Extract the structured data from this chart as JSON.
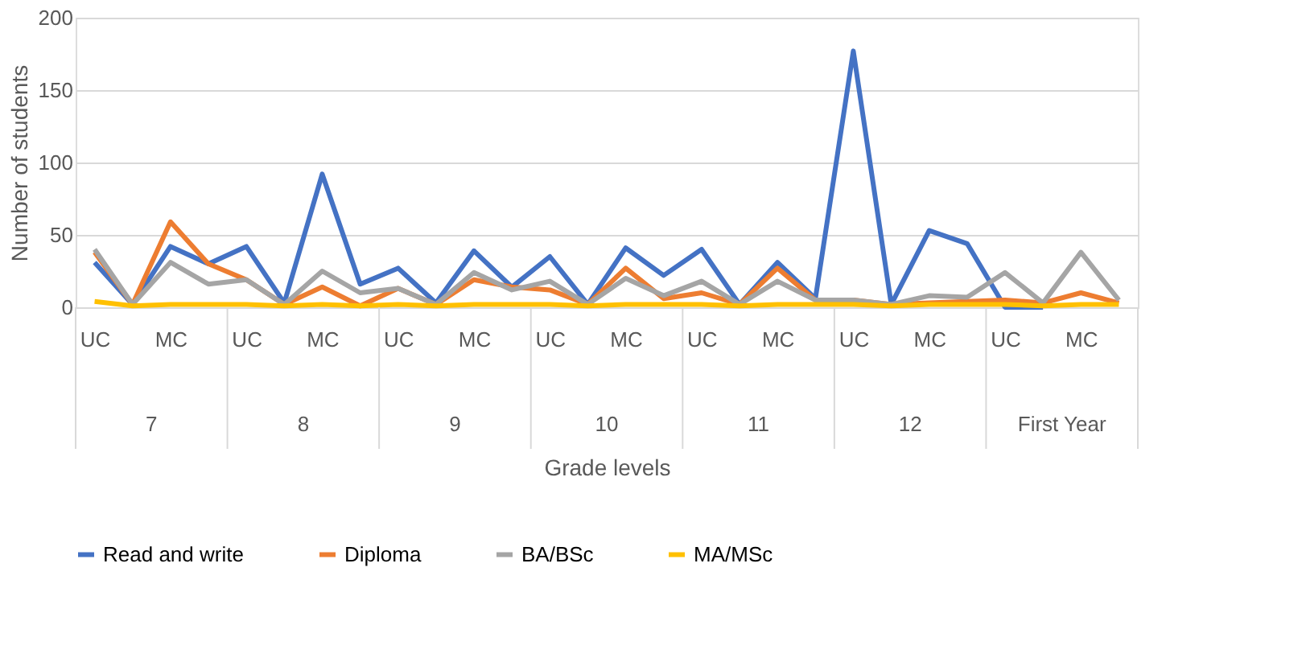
{
  "chart_data": {
    "type": "line",
    "xlabel": "Grade levels",
    "ylabel": "Number of students",
    "categories": [
      "UC",
      null,
      "MC",
      null,
      "UC",
      null,
      "MC",
      null,
      "UC",
      null,
      "MC",
      null,
      "UC",
      null,
      "MC",
      null,
      "UC",
      null,
      "MC",
      null,
      "UC",
      null,
      "MC",
      null,
      "UC",
      null,
      "MC",
      null
    ],
    "annotations": [
      "7",
      "8",
      "9",
      "10",
      "11",
      "12",
      "First Year"
    ],
    "series": [
      {
        "name": "Read and write",
        "color": "#4472c4",
        "values": [
          31,
          2,
          42,
          30,
          42,
          3,
          92,
          16,
          27,
          3,
          39,
          14,
          35,
          2,
          41,
          22,
          40,
          2,
          31,
          6,
          177,
          2,
          53,
          44,
          0,
          0,
          null,
          null
        ]
      },
      {
        "name": "Diploma",
        "color": "#ed7d31",
        "values": [
          38,
          2,
          59,
          30,
          19,
          2,
          14,
          1,
          13,
          2,
          19,
          14,
          12,
          2,
          27,
          6,
          10,
          2,
          27,
          5,
          5,
          2,
          3,
          4,
          5,
          3,
          10,
          3
        ]
      },
      {
        "name": "BA/BSc",
        "color": "#a5a5a5",
        "values": [
          40,
          2,
          31,
          16,
          19,
          2,
          25,
          10,
          13,
          2,
          24,
          12,
          18,
          2,
          20,
          8,
          18,
          2,
          18,
          5,
          5,
          2,
          8,
          7,
          24,
          3,
          38,
          5
        ]
      },
      {
        "name": "MA/MSc",
        "color": "#ffc000",
        "values": [
          4,
          1,
          2,
          2,
          2,
          1,
          2,
          1,
          2,
          1,
          2,
          2,
          2,
          1,
          2,
          2,
          2,
          1,
          2,
          2,
          2,
          1,
          2,
          2,
          2,
          1,
          2,
          2
        ]
      }
    ],
    "ylim": [
      0,
      200
    ],
    "yticks": [
      0,
      50,
      100,
      150,
      200
    ],
    "grid": "y",
    "legend": "bottom",
    "marker": "none",
    "line_style": "solid"
  }
}
